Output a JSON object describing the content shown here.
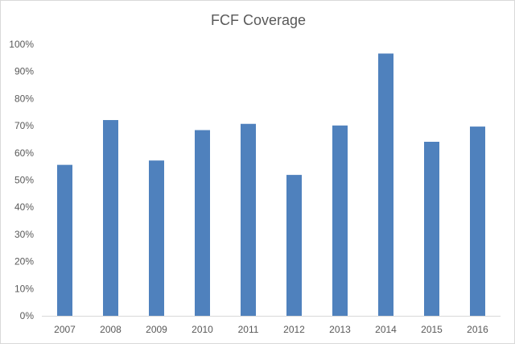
{
  "chart_data": {
    "type": "bar",
    "title": "FCF Coverage",
    "categories": [
      "2007",
      "2008",
      "2009",
      "2010",
      "2011",
      "2012",
      "2013",
      "2014",
      "2015",
      "2016"
    ],
    "values": [
      55.6,
      72.1,
      57.2,
      68.4,
      70.7,
      51.9,
      70.1,
      96.6,
      64.1,
      69.7
    ],
    "ylim": [
      0,
      100
    ],
    "yticks": [
      "0%",
      "10%",
      "20%",
      "30%",
      "40%",
      "50%",
      "60%",
      "70%",
      "80%",
      "90%",
      "100%"
    ],
    "grid": "none",
    "legend": "none",
    "colors": {
      "bar": "#4f81bd",
      "axis": "#d9d9d9",
      "text": "#595959"
    }
  }
}
